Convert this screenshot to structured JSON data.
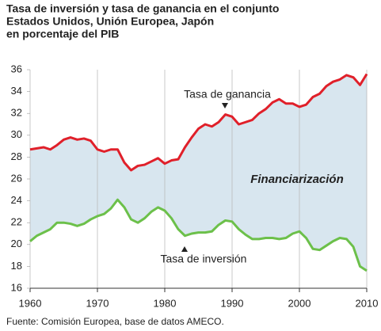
{
  "chart_data": {
    "type": "line",
    "title": [
      "Tasa de inversión y tasa de ganancia en el conjunto",
      "Estados Unidos, Unión Europea, Japón",
      "en porcentaje del PIB"
    ],
    "x": [
      1960,
      1961,
      1962,
      1963,
      1964,
      1965,
      1966,
      1967,
      1968,
      1969,
      1970,
      1971,
      1972,
      1973,
      1974,
      1975,
      1976,
      1977,
      1978,
      1979,
      1980,
      1981,
      1982,
      1983,
      1984,
      1985,
      1986,
      1987,
      1988,
      1989,
      1990,
      1991,
      1992,
      1993,
      1994,
      1995,
      1996,
      1997,
      1998,
      1999,
      2000,
      2001,
      2002,
      2003,
      2004,
      2005,
      2006,
      2007,
      2008,
      2009,
      2010
    ],
    "series": [
      {
        "name": "Tasa de ganancia",
        "color": "#e0202a",
        "values": [
          28.7,
          28.8,
          28.9,
          28.7,
          29.1,
          29.6,
          29.8,
          29.6,
          29.7,
          29.5,
          28.7,
          28.5,
          28.7,
          28.7,
          27.5,
          26.8,
          27.2,
          27.3,
          27.6,
          27.9,
          27.4,
          27.7,
          27.8,
          28.9,
          29.8,
          30.6,
          31.0,
          30.8,
          31.2,
          31.9,
          31.7,
          31.0,
          31.2,
          31.4,
          32.0,
          32.4,
          33.0,
          33.3,
          32.9,
          32.9,
          32.6,
          32.8,
          33.5,
          33.8,
          34.5,
          34.9,
          35.1,
          35.5,
          35.3,
          34.6,
          35.6
        ]
      },
      {
        "name": "Tasa de inversión",
        "color": "#6cc04a",
        "values": [
          20.3,
          20.8,
          21.1,
          21.4,
          22.0,
          22.0,
          21.9,
          21.7,
          21.9,
          22.3,
          22.6,
          22.8,
          23.3,
          24.1,
          23.4,
          22.3,
          22.0,
          22.4,
          23.0,
          23.4,
          23.1,
          22.4,
          21.4,
          20.8,
          21.0,
          21.1,
          21.1,
          21.2,
          21.8,
          22.2,
          22.1,
          21.4,
          20.9,
          20.5,
          20.5,
          20.6,
          20.6,
          20.5,
          20.6,
          21.0,
          21.2,
          20.6,
          19.6,
          19.5,
          19.9,
          20.3,
          20.6,
          20.5,
          19.8,
          18.0,
          17.6
        ]
      }
    ],
    "annotation": "Financiarización",
    "band_color": "#d8e6ef",
    "xlim": [
      1960,
      2010
    ],
    "xticks": [
      1960,
      1970,
      1980,
      1990,
      2000,
      2010
    ],
    "ylim": [
      16,
      36
    ],
    "yticks": [
      16,
      18,
      20,
      22,
      24,
      26,
      28,
      30,
      32,
      34,
      36
    ],
    "grid": "x",
    "source": "Fuente: Comisión Europea, base de datos AMECO."
  }
}
